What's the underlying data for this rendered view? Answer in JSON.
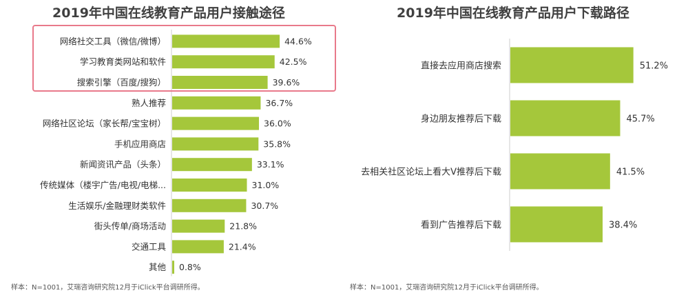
{
  "chart_data": [
    {
      "type": "bar",
      "orientation": "horizontal",
      "title": "2019年中国在线教育产品用户接触途径",
      "categories": [
        "网络社交工具（微信/微博）",
        "学习教育类网站和软件",
        "搜索引擎（百度/搜狗）",
        "熟人推荐",
        "网络社区论坛（家长帮/宝宝树）",
        "手机应用商店",
        "新闻资讯产品（头条）",
        "传统媒体（楼宇广告/电视/电梯...",
        "生活娱乐/金融理财类软件",
        "街头传单/商场活动",
        "交通工具",
        "其他"
      ],
      "values": [
        44.6,
        42.5,
        39.6,
        36.7,
        36.0,
        35.8,
        33.1,
        31.0,
        30.7,
        21.8,
        21.4,
        0.8
      ],
      "value_labels": [
        "44.6%",
        "42.5%",
        "39.6%",
        "36.7%",
        "36.0%",
        "35.8%",
        "33.1%",
        "31.0%",
        "30.7%",
        "21.8%",
        "21.4%",
        "0.8%"
      ],
      "highlighted_count": 3,
      "bar_color": "#a5c73b",
      "footnote": "样本：N=1001，艾瑞咨询研究院12月于iClick平台调研所得。"
    },
    {
      "type": "bar",
      "orientation": "horizontal",
      "title": "2019年中国在线教育产品用户下载路径",
      "categories": [
        "直接去应用商店搜索",
        "身边朋友推荐后下载",
        "去相关社区论坛上看大V推荐后下载",
        "看到广告推荐后下载"
      ],
      "values": [
        51.2,
        45.7,
        41.5,
        38.4
      ],
      "value_labels": [
        "51.2%",
        "45.7%",
        "41.5%",
        "38.4%"
      ],
      "bar_color": "#a5c73b",
      "footnote": "样本：N=1001，艾瑞咨询研究院12月于iClick平台调研所得。"
    }
  ],
  "colors": {
    "bar": "#a5c73b",
    "highlight_border": "#e8798a",
    "axis": "#cccccc"
  }
}
